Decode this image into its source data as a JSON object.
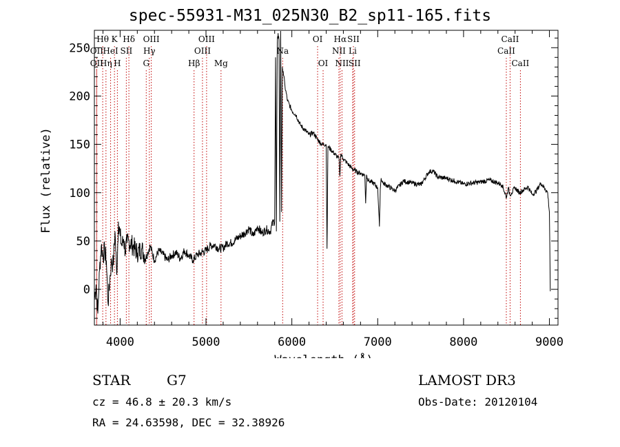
{
  "header": {
    "title": "spec-55931-M31_025N30_B2_sp11-165.fits"
  },
  "info": {
    "class": "STAR",
    "subclass": "G7",
    "survey": "LAMOST DR3",
    "cz": "cz = 46.8 ± 20.3 km/s",
    "obs_date": "Obs-Date: 20120104",
    "radec": "RA =  24.63598, DEC =  32.38926"
  },
  "colors": {
    "line": "#000000",
    "marker": "#c00000"
  },
  "chart_data": {
    "type": "line",
    "title": "spec-55931-M31_025N30_B2_sp11-165.fits",
    "xlabel": "Wavelength (Å)",
    "ylabel": "Flux (relative)",
    "xlim": [
      3700,
      9100
    ],
    "ylim": [
      -37,
      268
    ],
    "xticks": [
      4000,
      5000,
      6000,
      7000,
      8000,
      9000
    ],
    "yticks": [
      0,
      50,
      100,
      150,
      200,
      250
    ],
    "grid": false,
    "series": [
      {
        "name": "flux",
        "x": [
          3700,
          3720,
          3740,
          3760,
          3780,
          3800,
          3820,
          3840,
          3860,
          3880,
          3900,
          3920,
          3940,
          3960,
          3980,
          4000,
          4020,
          4040,
          4060,
          4080,
          4100,
          4150,
          4200,
          4250,
          4300,
          4350,
          4400,
          4450,
          4500,
          4550,
          4600,
          4650,
          4700,
          4750,
          4800,
          4850,
          4900,
          4950,
          5000,
          5050,
          5100,
          5150,
          5200,
          5250,
          5300,
          5350,
          5400,
          5450,
          5500,
          5550,
          5600,
          5650,
          5700,
          5750,
          5780,
          5800,
          5810,
          5820,
          5830,
          5840,
          5850,
          5860,
          5870,
          5880,
          5890,
          5900,
          5920,
          5950,
          6000,
          6050,
          6100,
          6150,
          6200,
          6250,
          6300,
          6350,
          6400,
          6410,
          6420,
          6450,
          6500,
          6550,
          6560,
          6570,
          6600,
          6650,
          6700,
          6750,
          6800,
          6850,
          6860,
          6870,
          6880,
          6900,
          6950,
          7000,
          7020,
          7030,
          7040,
          7060,
          7100,
          7200,
          7300,
          7400,
          7500,
          7600,
          7650,
          7700,
          7800,
          7900,
          8000,
          8100,
          8200,
          8300,
          8400,
          8450,
          8500,
          8520,
          8540,
          8560,
          8600,
          8650,
          8700,
          8750,
          8800,
          8850,
          8900,
          8950,
          8980,
          9000,
          9010
        ],
        "y": [
          -10,
          5,
          -25,
          20,
          45,
          35,
          40,
          30,
          -15,
          10,
          30,
          25,
          60,
          15,
          70,
          55,
          45,
          52,
          40,
          48,
          50,
          45,
          38,
          42,
          33,
          45,
          30,
          40,
          36,
          30,
          35,
          38,
          32,
          40,
          35,
          30,
          36,
          38,
          40,
          45,
          46,
          42,
          43,
          48,
          48,
          52,
          55,
          58,
          63,
          55,
          65,
          58,
          62,
          60,
          70,
          70,
          240,
          60,
          255,
          265,
          258,
          70,
          270,
          80,
          230,
          225,
          210,
          195,
          185,
          180,
          170,
          165,
          160,
          162,
          155,
          150,
          150,
          42,
          148,
          145,
          140,
          135,
          117,
          140,
          135,
          130,
          125,
          122,
          120,
          118,
          89,
          118,
          115,
          112,
          110,
          105,
          65,
          103,
          115,
          110,
          108,
          102,
          112,
          110,
          108,
          122,
          122,
          116,
          115,
          112,
          109,
          110,
          111,
          113,
          110,
          108,
          95,
          105,
          98,
          100,
          105,
          100,
          103,
          106,
          98,
          102,
          110,
          104,
          100,
          80,
          -2
        ]
      }
    ],
    "lines": [
      {
        "label": "Hθ",
        "wl": 3797,
        "row": 1
      },
      {
        "label": "OII",
        "wl": 3727,
        "row": 2
      },
      {
        "label": "OII",
        "wl": 3727,
        "row": 3
      },
      {
        "label": "Hη",
        "wl": 3835,
        "row": 3
      },
      {
        "label": "K",
        "wl": 3934,
        "row": 1
      },
      {
        "label": "HeI",
        "wl": 3889,
        "row": 2
      },
      {
        "label": "H",
        "wl": 3968,
        "row": 3
      },
      {
        "label": "SII",
        "wl": 4072,
        "row": 2
      },
      {
        "label": "Hδ",
        "wl": 4102,
        "row": 1
      },
      {
        "label": "OIII",
        "wl": 4363,
        "row": 1
      },
      {
        "label": "Hγ",
        "wl": 4340,
        "row": 2
      },
      {
        "label": "G",
        "wl": 4304,
        "row": 3
      },
      {
        "label": "Hβ",
        "wl": 4861,
        "row": 3
      },
      {
        "label": "OIII",
        "wl": 5007,
        "row": 1
      },
      {
        "label": "OIII",
        "wl": 4959,
        "row": 2
      },
      {
        "label": "Mg",
        "wl": 5175,
        "row": 3
      },
      {
        "label": "Na",
        "wl": 5893,
        "row": 2
      },
      {
        "label": "OI",
        "wl": 6300,
        "row": 1
      },
      {
        "label": "OI",
        "wl": 6364,
        "row": 3
      },
      {
        "label": "Hα",
        "wl": 6563,
        "row": 1
      },
      {
        "label": "NII",
        "wl": 6548,
        "row": 2
      },
      {
        "label": "NII",
        "wl": 6584,
        "row": 3
      },
      {
        "label": "SII",
        "wl": 6717,
        "row": 1
      },
      {
        "label": "Li",
        "wl": 6708,
        "row": 2
      },
      {
        "label": "SII",
        "wl": 6731,
        "row": 3
      },
      {
        "label": "CaII",
        "wl": 8542,
        "row": 1
      },
      {
        "label": "CaII",
        "wl": 8498,
        "row": 2
      },
      {
        "label": "CaII",
        "wl": 8662,
        "row": 3
      }
    ]
  }
}
